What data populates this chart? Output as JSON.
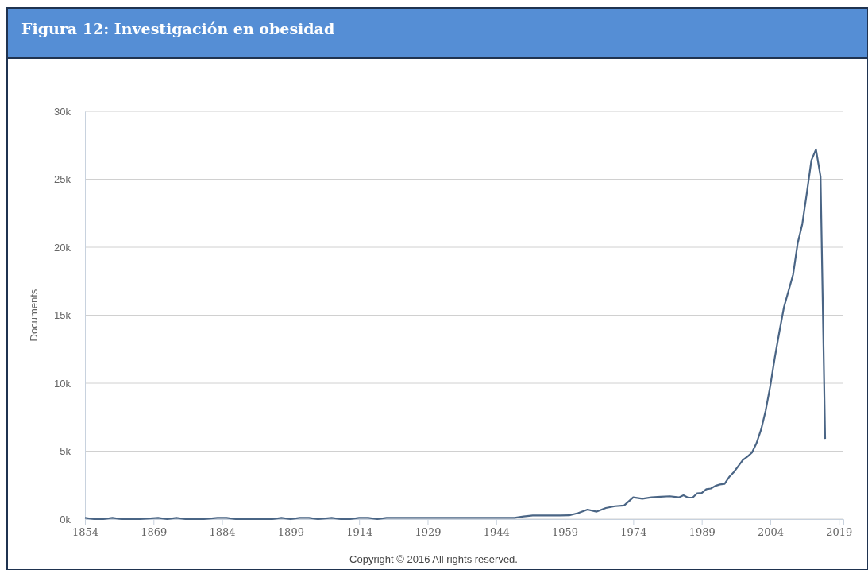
{
  "chart_data": {
    "type": "line",
    "title": "Figura 12: Investigación en obesidad",
    "ylabel": "Documents",
    "x": [
      1854,
      1856,
      1858,
      1860,
      1862,
      1866,
      1870,
      1872,
      1874,
      1876,
      1880,
      1883,
      1885,
      1887,
      1895,
      1897,
      1899,
      1901,
      1903,
      1905,
      1908,
      1910,
      1912,
      1914,
      1916,
      1918,
      1920,
      1925,
      1930,
      1935,
      1940,
      1945,
      1948,
      1950,
      1952,
      1955,
      1958,
      1960,
      1962,
      1964,
      1966,
      1968,
      1970,
      1972,
      1974,
      1976,
      1978,
      1980,
      1982,
      1984,
      1985,
      1986,
      1987,
      1988,
      1989,
      1990,
      1991,
      1992,
      1993,
      1994,
      1995,
      1996,
      1997,
      1998,
      1999,
      2000,
      2001,
      2002,
      2003,
      2004,
      2005,
      2006,
      2007,
      2008,
      2009,
      2010,
      2011,
      2012,
      2013,
      2014,
      2015,
      2016
    ],
    "series": [
      {
        "color": "#4a6585",
        "values": [
          100,
          0,
          0,
          100,
          0,
          0,
          100,
          0,
          100,
          0,
          0,
          100,
          100,
          0,
          0,
          100,
          0,
          100,
          100,
          0,
          100,
          0,
          0,
          100,
          100,
          0,
          100,
          100,
          100,
          100,
          100,
          100,
          100,
          200,
          270,
          270,
          270,
          280,
          450,
          700,
          550,
          820,
          950,
          1000,
          1600,
          1500,
          1600,
          1650,
          1680,
          1600,
          1750,
          1580,
          1580,
          1900,
          1920,
          2200,
          2250,
          2450,
          2550,
          2600,
          3100,
          3450,
          3900,
          4350,
          4600,
          4900,
          5600,
          6600,
          8000,
          9800,
          11900,
          13800,
          15600,
          16800,
          18000,
          20300,
          21700,
          24000,
          26400,
          27200,
          25200,
          5900
        ]
      }
    ],
    "xlim": [
      1854,
      2020
    ],
    "xticks": [
      1854,
      1869,
      1884,
      1899,
      1914,
      1929,
      1944,
      1959,
      1974,
      1989,
      2004,
      2019
    ],
    "ylim": [
      0,
      30000
    ],
    "yticks": [
      {
        "value": 0,
        "label": "0k"
      },
      {
        "value": 5000,
        "label": "5k"
      },
      {
        "value": 10000,
        "label": "10k"
      },
      {
        "value": 15000,
        "label": "15k"
      },
      {
        "value": 20000,
        "label": "20k"
      },
      {
        "value": 25000,
        "label": "25k"
      },
      {
        "value": 30000,
        "label": "30k"
      }
    ],
    "grid": "y",
    "marker": "none",
    "line_style": "solid",
    "annotations": [
      "Copyright © 2016 All rights reserved."
    ]
  }
}
